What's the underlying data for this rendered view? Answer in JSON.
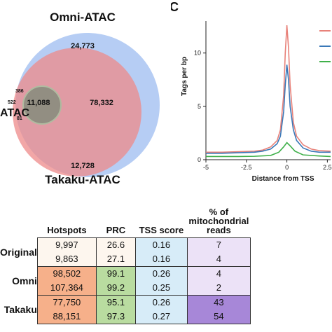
{
  "venn": {
    "sets": [
      {
        "name": "Omni-ATAC",
        "color": "#a9c4f2"
      },
      {
        "name": "Takaku-ATAC",
        "color": "#ee8a8a"
      },
      {
        "name": "ATAC",
        "color": "#8fd19e"
      }
    ],
    "regions": {
      "omni_only": "24,773",
      "omni_takaku": "78,332",
      "all_three": "11,088",
      "takaku_only": "12,728",
      "small_a": "386",
      "small_b": "522",
      "small_c": "81"
    }
  },
  "panel_letter": "C",
  "chart_data": {
    "type": "line",
    "xlabel": "Distance from TSS",
    "ylabel": "Tags per bp",
    "xlim": [
      -5,
      2.7
    ],
    "ylim": [
      0,
      13
    ],
    "x_ticks": [
      -5,
      -2.5,
      0,
      2.5
    ],
    "x_tick_labels": [
      "-5",
      "-2.5",
      "0",
      "2.5"
    ],
    "y_ticks": [
      0,
      5,
      10
    ],
    "y_tick_labels": [
      "0",
      "5",
      "10"
    ],
    "legend_placement": "top-right",
    "series": [
      {
        "color": "#e8827a",
        "x": [
          -5,
          -4,
          -3,
          -2,
          -1.5,
          -1,
          -0.6,
          -0.4,
          -0.2,
          -0.1,
          0,
          0.1,
          0.2,
          0.4,
          0.6,
          1,
          1.5,
          2,
          2.7
        ],
        "y": [
          0.7,
          0.7,
          0.75,
          0.8,
          0.9,
          1.2,
          1.8,
          2.8,
          6.0,
          10.0,
          12.6,
          10.5,
          7.0,
          3.5,
          2.2,
          1.4,
          1.0,
          0.85,
          0.8
        ]
      },
      {
        "color": "#3a78b8",
        "x": [
          -5,
          -4,
          -3,
          -2,
          -1.5,
          -1,
          -0.6,
          -0.4,
          -0.2,
          -0.1,
          0,
          0.1,
          0.2,
          0.4,
          0.6,
          1,
          1.5,
          2,
          2.7
        ],
        "y": [
          0.6,
          0.6,
          0.65,
          0.7,
          0.8,
          1.0,
          1.5,
          2.2,
          4.5,
          7.0,
          8.9,
          7.5,
          5.0,
          2.8,
          1.8,
          1.1,
          0.8,
          0.7,
          0.7
        ]
      },
      {
        "color": "#3fb04a",
        "x": [
          -5,
          -4,
          -3,
          -2,
          -1,
          -0.5,
          -0.2,
          0,
          0.2,
          0.5,
          1,
          2,
          2.7
        ],
        "y": [
          0.3,
          0.3,
          0.3,
          0.32,
          0.4,
          0.7,
          1.2,
          1.6,
          1.3,
          0.8,
          0.45,
          0.35,
          0.3
        ]
      }
    ]
  },
  "table": {
    "headers": [
      "Hotspots",
      "PRC",
      "TSS score",
      "% of\nmitochondrial\nreads"
    ],
    "groups": [
      {
        "label": "Original",
        "color": "#fdf6ee",
        "rows": [
          [
            "9,997",
            "26.6",
            "0.16",
            "7"
          ],
          [
            "9,863",
            "27.1",
            "0.16",
            "4"
          ]
        ]
      },
      {
        "label": "Omni",
        "color": "#f6b08a",
        "rows": [
          [
            "98,502",
            "99.1",
            "0.26",
            "4"
          ],
          [
            "107,364",
            "99.2",
            "0.25",
            "2"
          ]
        ]
      },
      {
        "label": "Takaku",
        "color": "#f6b08a",
        "rows": [
          [
            "77,750",
            "95.1",
            "0.26",
            "43"
          ],
          [
            "88,151",
            "97.3",
            "0.27",
            "54"
          ]
        ]
      }
    ],
    "col_colors": {
      "prc": "#b9dca0",
      "tss": "#d7ecf8",
      "mito_light": "#ece2f7",
      "mito_dark": "#a787d8"
    }
  }
}
